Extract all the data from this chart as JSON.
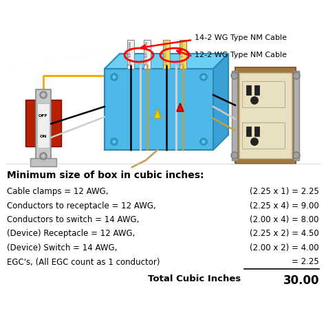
{
  "title": "Minimum size of box in cubic inches:",
  "rows": [
    {
      "label": "Cable clamps = 12 AWG,",
      "formula": "(2.25 x 1) = 2.25"
    },
    {
      "label": "Conductors to receptacle = 12 AWG,",
      "formula": "(2.25 x 4) = 9.00"
    },
    {
      "label": "Conductors to switch = 14 AWG,",
      "formula": "(2.00 x 4) = 8.00"
    },
    {
      "label": "(Device) Receptacle = 12 AWG,",
      "formula": "(2.25 x 2) = 4.50"
    },
    {
      "label": "(Device) Switch = 14 AWG,",
      "formula": "(2.00 x 2) = 4.00"
    },
    {
      "label": "EGC's, (All EGC count as 1 conductor)",
      "formula": "= 2.25"
    }
  ],
  "total_label": "Total Cubic Inches",
  "total_value": "30.00",
  "cable_label_1": "14-2 WG Type NM Cable",
  "cable_label_2": "12-2 WG Type NM Cable",
  "bg_color": "#ffffff",
  "title_color": "#000000",
  "text_color": "#000000",
  "box_color": "#4db8e8",
  "box_top_color": "#6ccff5",
  "box_right_color": "#3aa0d5",
  "box_edge_color": "#2a8ab0",
  "cable_white_color": "#f0f0f0",
  "cable_yellow_color": "#f0e050",
  "wire_gold_color": "#c8a030",
  "switch_body_color": "#e0e0e0",
  "switch_red_bg": "#cc2200",
  "outlet_body_color": "#d4c89a",
  "outlet_bg_color": "#b8a870",
  "outlet_face_color": "#e8e0c0",
  "screw_color": "#a0a0a0"
}
